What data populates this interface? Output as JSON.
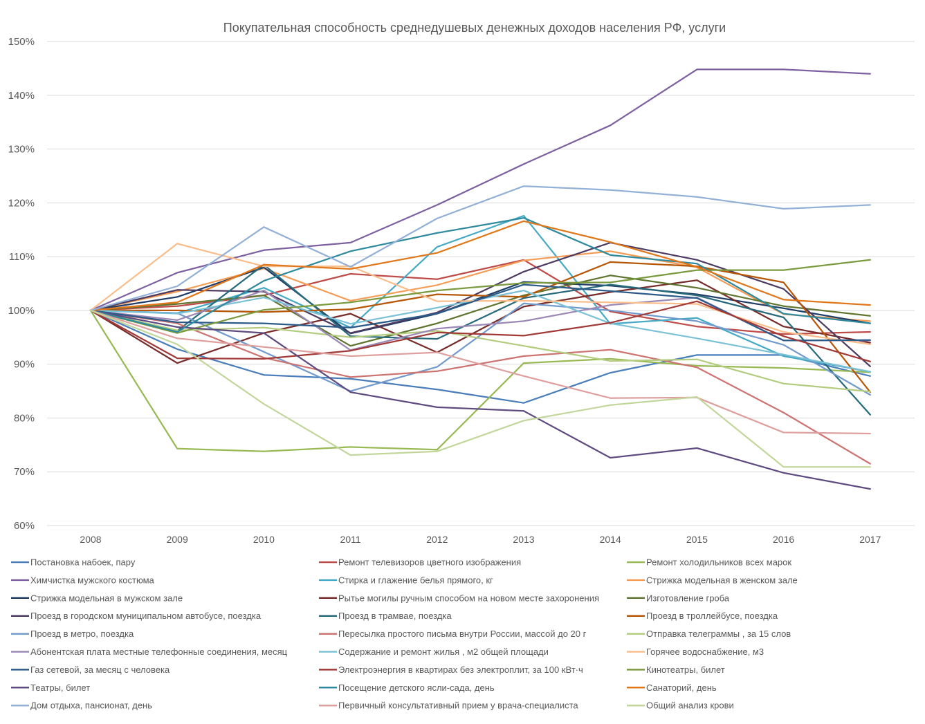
{
  "chart_data": {
    "type": "line",
    "title": "Покупательная способность среднедушевых денежных доходов населения РФ, услуги",
    "xlabel": "",
    "ylabel": "",
    "x": [
      "2008",
      "2009",
      "2010",
      "2011",
      "2012",
      "2013",
      "2014",
      "2015",
      "2016",
      "2017"
    ],
    "y_ticks": [
      "60%",
      "70%",
      "80%",
      "90%",
      "100%",
      "110%",
      "120%",
      "130%",
      "140%",
      "150%"
    ],
    "ylim": [
      60,
      150
    ],
    "grid": true,
    "legend_position": "bottom",
    "series": [
      {
        "name": "Постановка набоек, пару",
        "color": "#4a7ebb",
        "values": [
          100,
          92.8,
          88,
          87.3,
          85.3,
          82.8,
          88.4,
          91.7,
          91.7,
          87.8
        ]
      },
      {
        "name": "Ремонт телевизоров цветного изображения",
        "color": "#be4b48",
        "values": [
          100,
          100.8,
          102.8,
          106.8,
          105.8,
          109.4,
          99.8,
          97,
          95.6,
          96
        ]
      },
      {
        "name": "Ремонт холодильников всех марок",
        "color": "#98b954",
        "values": [
          100,
          74.3,
          73.8,
          74.6,
          74.1,
          90.2,
          91,
          89.7,
          89.3,
          88.5
        ]
      },
      {
        "name": "Химчистка мужского костюма",
        "color": "#7d60a0",
        "values": [
          100,
          107,
          111.2,
          112.6,
          119.6,
          127.2,
          134.4,
          144.8,
          144.8,
          144
        ]
      },
      {
        "name": "Стирка и глажение белья прямого, кг",
        "color": "#46aac5",
        "values": [
          100,
          99.5,
          104.2,
          96.8,
          111.8,
          117.6,
          97.5,
          98.6,
          91.5,
          88.6
        ]
      },
      {
        "name": "Стрижка модельная в женском зале",
        "color": "#f59d56",
        "values": [
          100,
          103.5,
          107.8,
          101.8,
          104.7,
          109.3,
          111,
          108,
          99.3,
          98
        ]
      },
      {
        "name": "Стрижка модельная в мужском зале",
        "color": "#1f3d66",
        "values": [
          100,
          102.5,
          108,
          95.7,
          99.4,
          105.3,
          104.6,
          103,
          100.4,
          97.6
        ]
      },
      {
        "name": "Рытье могилы ручным способом на новом месте захоронения",
        "color": "#772c2a",
        "values": [
          100,
          90.2,
          95.8,
          99.4,
          92.2,
          100.7,
          103.4,
          105.6,
          97,
          94
        ]
      },
      {
        "name": "Изготовление гроба",
        "color": "#5f7530",
        "values": [
          100,
          101.2,
          102.8,
          93.4,
          97.6,
          102.8,
          106.5,
          104.2,
          100.8,
          99
        ]
      },
      {
        "name": "Проезд в городском муниципальном автобусе, поездка",
        "color": "#4d3b62",
        "values": [
          100,
          103.8,
          103.5,
          95.8,
          99.6,
          107.2,
          112.6,
          109.4,
          104,
          89.6
        ]
      },
      {
        "name": "Проезд в трамвае, поездка",
        "color": "#276a7c",
        "values": [
          100,
          96.2,
          108.5,
          95.2,
          94.7,
          102.3,
          104.8,
          102.8,
          98.7,
          80.6
        ]
      },
      {
        "name": "Проезд в троллейбусе, поездка",
        "color": "#b65708",
        "values": [
          100,
          100,
          99.7,
          100.2,
          103,
          102.5,
          109,
          108.2,
          105.2,
          84.8
        ]
      },
      {
        "name": "Проезд в метро, поездка",
        "color": "#729acc",
        "values": [
          100,
          99.5,
          92.3,
          85,
          89.5,
          101.3,
          100,
          98,
          93.6,
          84.3
        ]
      },
      {
        "name": "Пересылка простого письма внутри России, массой до 20 г",
        "color": "#cd7371",
        "values": [
          100,
          97.6,
          91.2,
          87.6,
          88.7,
          91.5,
          92.7,
          89.4,
          81,
          71.5
        ]
      },
      {
        "name": "Отправка телеграммы , за 15 слов",
        "color": "#b3cc7f",
        "values": [
          100,
          96.3,
          96.8,
          95,
          96.2,
          93.4,
          90.6,
          90.9,
          86.4,
          84.9
        ]
      },
      {
        "name": "Абонентская плата местные телефонные соединения, месяц",
        "color": "#9b88b5",
        "values": [
          100,
          98.2,
          103.7,
          92.6,
          96.6,
          98,
          101,
          102.4,
          94.4,
          94.4
        ]
      },
      {
        "name": "Содержание и ремонт жилья , м2 общей площади",
        "color": "#7cc2d6",
        "values": [
          100,
          99.4,
          102.4,
          97.5,
          100.5,
          103.7,
          97.6,
          94.8,
          91.8,
          88.6
        ]
      },
      {
        "name": "Горячее водоснабжение, м3",
        "color": "#f9be8c",
        "values": [
          100,
          112.4,
          108.2,
          108.2,
          101.7,
          101.8,
          101.5,
          101.2,
          96,
          93.7
        ]
      },
      {
        "name": "Газ сетевой, за месяц с человека",
        "color": "#2c5b8a",
        "values": [
          100,
          97.8,
          97.6,
          96.8,
          99.4,
          104.8,
          103.6,
          102.3,
          94.4,
          94.5
        ]
      },
      {
        "name": "Электроэнергия в квартирах  без электроплит, за 100 кВт·ч",
        "color": "#a13936",
        "values": [
          100,
          91.1,
          91,
          92.5,
          95.9,
          95.3,
          97.7,
          101.7,
          95.2,
          90.5
        ]
      },
      {
        "name": "Кинотеатры, билет",
        "color": "#7b9a3f",
        "values": [
          100,
          95.8,
          100.1,
          101.5,
          103.7,
          105.1,
          105.2,
          107.5,
          107.5,
          109.4
        ]
      },
      {
        "name": "Театры, билет",
        "color": "#5e4b80",
        "values": [
          100,
          96.9,
          95.8,
          84.8,
          82,
          81.3,
          72.6,
          74.4,
          69.8,
          66.8
        ]
      },
      {
        "name": "Посещение детского ясли-сада, день",
        "color": "#2f8a9e",
        "values": [
          100,
          96,
          105.5,
          111,
          114.4,
          117.2,
          110.3,
          108.7,
          99.4,
          97.6
        ]
      },
      {
        "name": "Санаторий,  день",
        "color": "#e0781b",
        "values": [
          100,
          101.5,
          108.5,
          107.7,
          110.7,
          116.6,
          112.7,
          108.1,
          102,
          101
        ]
      },
      {
        "name": "Дом отдыха, пансионат, день",
        "color": "#93b0d6",
        "values": [
          100,
          104.5,
          115.5,
          108.1,
          117.1,
          123.1,
          122.4,
          121.1,
          118.9,
          119.6
        ]
      },
      {
        "name": "Первичный консультативный прием у врача-специалиста",
        "color": "#dea09e",
        "values": [
          100,
          94.8,
          93.2,
          91.5,
          92.2,
          87.8,
          83.7,
          83.8,
          77.3,
          77.1
        ]
      },
      {
        "name": "Общий анализ крови",
        "color": "#c3d69b",
        "values": [
          100,
          93.7,
          82.6,
          73.1,
          73.8,
          79.5,
          82.4,
          83.9,
          70.9,
          70.9
        ]
      }
    ]
  }
}
